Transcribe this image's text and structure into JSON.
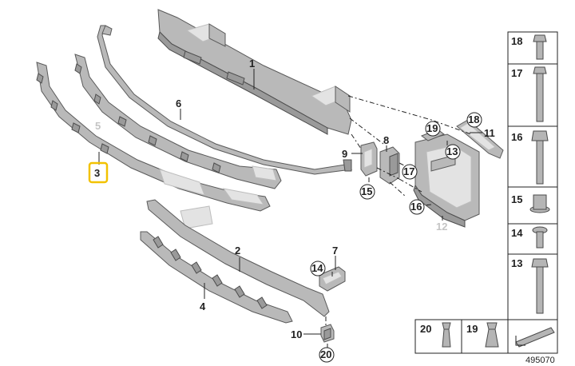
{
  "diagram": {
    "reference_number": "495070",
    "parts": [
      {
        "number": "1",
        "kind": "bumper-carrier-beam"
      },
      {
        "number": "2",
        "kind": "lower-trim-strip"
      },
      {
        "number": "3",
        "kind": "upper-bracket-strip",
        "highlighted": true
      },
      {
        "number": "4",
        "kind": "lower-bracket-strip"
      },
      {
        "number": "5",
        "kind": "upper-bracket-strip-alt",
        "greyed": true
      },
      {
        "number": "6",
        "kind": "cable-strip"
      },
      {
        "number": "7",
        "kind": "bracket"
      },
      {
        "number": "8",
        "kind": "mount-bracket"
      },
      {
        "number": "9",
        "kind": "clip-bracket"
      },
      {
        "number": "10",
        "kind": "clip"
      },
      {
        "number": "11",
        "kind": "bracket-arm"
      },
      {
        "number": "12",
        "kind": "crash-box",
        "greyed": true
      },
      {
        "number": "13",
        "kind": "bolt"
      },
      {
        "number": "14",
        "kind": "screw"
      },
      {
        "number": "15",
        "kind": "flange-nut"
      },
      {
        "number": "16",
        "kind": "long-bolt"
      },
      {
        "number": "17",
        "kind": "long-bolt"
      },
      {
        "number": "18",
        "kind": "hex-bolt"
      },
      {
        "number": "19",
        "kind": "expanding-rivet"
      },
      {
        "number": "20",
        "kind": "expanding-rivet"
      }
    ],
    "callout_circles": [
      "13",
      "14",
      "15",
      "16",
      "17",
      "18",
      "19",
      "20"
    ],
    "sidebar_items": [
      "18",
      "17",
      "16",
      "15",
      "14",
      "13"
    ],
    "bottom_items": [
      "20",
      "19"
    ]
  }
}
